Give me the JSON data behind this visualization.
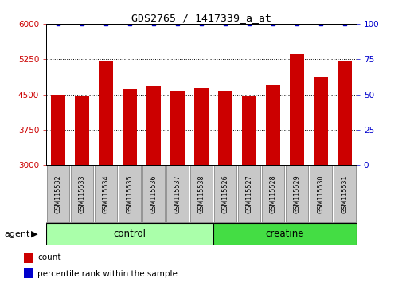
{
  "title": "GDS2765 / 1417339_a_at",
  "samples": [
    "GSM115532",
    "GSM115533",
    "GSM115534",
    "GSM115535",
    "GSM115536",
    "GSM115537",
    "GSM115538",
    "GSM115526",
    "GSM115527",
    "GSM115528",
    "GSM115529",
    "GSM115530",
    "GSM115531"
  ],
  "counts": [
    4500,
    4480,
    5220,
    4620,
    4680,
    4570,
    4650,
    4570,
    4460,
    4700,
    5350,
    4870,
    5210
  ],
  "percentiles": [
    100,
    100,
    100,
    100,
    100,
    100,
    100,
    100,
    100,
    100,
    100,
    100,
    100
  ],
  "ylim_left": [
    3000,
    6000
  ],
  "ylim_right": [
    0,
    100
  ],
  "yticks_left": [
    3000,
    3750,
    4500,
    5250,
    6000
  ],
  "yticks_right": [
    0,
    25,
    50,
    75,
    100
  ],
  "bar_color": "#CC0000",
  "dot_color": "#0000CC",
  "bar_width": 0.6,
  "groups": [
    {
      "label": "control",
      "indices": [
        0,
        1,
        2,
        3,
        4,
        5,
        6
      ],
      "color": "#AAFFAA"
    },
    {
      "label": "creatine",
      "indices": [
        7,
        8,
        9,
        10,
        11,
        12
      ],
      "color": "#44DD44"
    }
  ],
  "agent_label": "agent",
  "legend_count_label": "count",
  "legend_percentile_label": "percentile rank within the sample",
  "bg_color": "#FFFFFF",
  "tick_label_color_left": "#CC0000",
  "tick_label_color_right": "#0000CC",
  "label_box_color": "#C8C8C8",
  "label_box_edge": "#888888"
}
